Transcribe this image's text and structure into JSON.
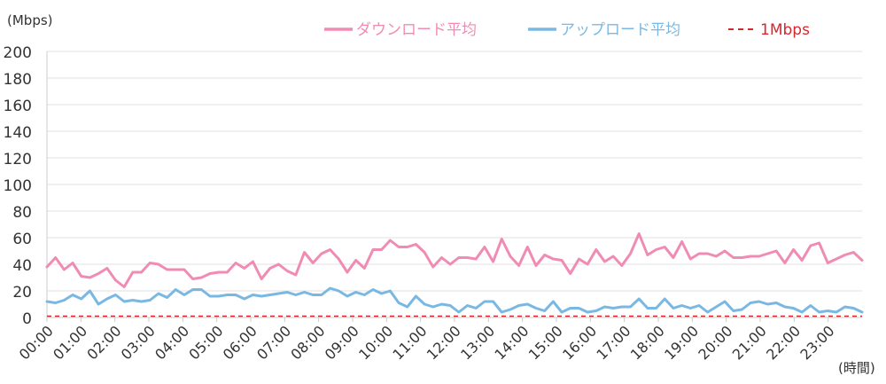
{
  "chart_data": {
    "type": "line",
    "ylabel": "(Mbps)",
    "xlabel": "(時間)",
    "ylim": [
      0,
      200
    ],
    "y_ticks": [
      0,
      20,
      40,
      60,
      80,
      100,
      120,
      140,
      160,
      180,
      200
    ],
    "grid": true,
    "legend_position": "top-right",
    "x_tick_labels": [
      "00:00",
      "01:00",
      "02:00",
      "03:00",
      "04:00",
      "05:00",
      "06:00",
      "07:00",
      "08:00",
      "09:00",
      "10:00",
      "11:00",
      "12:00",
      "13:00",
      "14:00",
      "15:00",
      "16:00",
      "17:00",
      "18:00",
      "19:00",
      "20:00",
      "21:00",
      "22:00",
      "23:00"
    ],
    "points_per_hour": 4,
    "series": [
      {
        "name": "ダウンロード平均",
        "color": "#f08cb4",
        "values": [
          38,
          45,
          36,
          41,
          31,
          30,
          33,
          37,
          28,
          23,
          34,
          34,
          41,
          40,
          36,
          36,
          36,
          29,
          30,
          33,
          34,
          34,
          41,
          37,
          42,
          29,
          37,
          40,
          35,
          32,
          49,
          41,
          48,
          51,
          44,
          34,
          43,
          37,
          51,
          51,
          58,
          53,
          53,
          55,
          49,
          38,
          45,
          40,
          45,
          45,
          44,
          53,
          42,
          59,
          46,
          39,
          53,
          39,
          47,
          44,
          43,
          33,
          44,
          40,
          51,
          42,
          46,
          39,
          48,
          63,
          47,
          51,
          53,
          45,
          57,
          44,
          48,
          48,
          46,
          50,
          45,
          45,
          46,
          46,
          48,
          50,
          41,
          51,
          43,
          54,
          56,
          41,
          44,
          47,
          49,
          43
        ]
      },
      {
        "name": "アップロード平均",
        "color": "#7ab8e4",
        "values": [
          12,
          11,
          13,
          17,
          14,
          20,
          10,
          14,
          17,
          12,
          13,
          12,
          13,
          18,
          15,
          21,
          17,
          21,
          21,
          16,
          16,
          17,
          17,
          14,
          17,
          16,
          17,
          18,
          19,
          17,
          19,
          17,
          17,
          22,
          20,
          16,
          19,
          17,
          21,
          18,
          20,
          11,
          8,
          16,
          10,
          8,
          10,
          9,
          4,
          9,
          7,
          12,
          12,
          4,
          6,
          9,
          10,
          7,
          5,
          12,
          4,
          7,
          7,
          4,
          5,
          8,
          7,
          8,
          8,
          14,
          7,
          7,
          14,
          7,
          9,
          7,
          9,
          4,
          8,
          12,
          5,
          6,
          11,
          12,
          10,
          11,
          8,
          7,
          4,
          9,
          4,
          5,
          4,
          8,
          7,
          4
        ]
      },
      {
        "name": "1Mbps",
        "color": "#d9262c",
        "dashed": true,
        "values": [
          1,
          1
        ]
      }
    ]
  }
}
